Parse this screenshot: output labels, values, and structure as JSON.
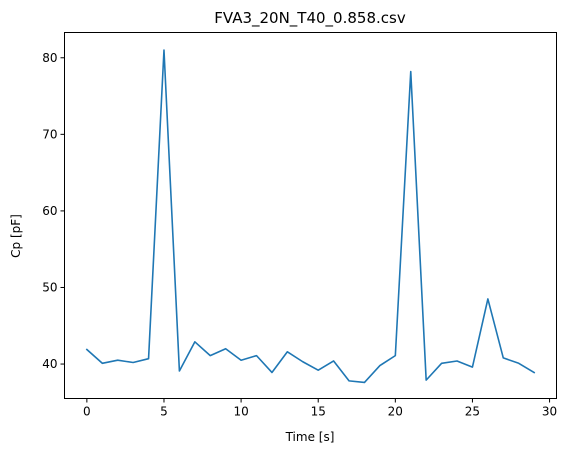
{
  "chart_data": {
    "type": "line",
    "title": "FVA3_20N_T40_0.858.csv",
    "xlabel": "Time [s]",
    "ylabel": "Cp [pF]",
    "xlim": [
      -1.45,
      30.45
    ],
    "ylim": [
      35.5,
      83.3
    ],
    "xticks": [
      0,
      5,
      10,
      15,
      20,
      25,
      30
    ],
    "yticks": [
      40,
      50,
      60,
      70,
      80
    ],
    "grid": false,
    "series": [
      {
        "color": "#1f77b4",
        "x": [
          0,
          1,
          2,
          3,
          4,
          5,
          6,
          7,
          8,
          9,
          10,
          11,
          12,
          13,
          14,
          15,
          16,
          17,
          18,
          19,
          20,
          21,
          22,
          23,
          24,
          25,
          26,
          27,
          28,
          29
        ],
        "y": [
          41.9,
          40.1,
          40.5,
          40.2,
          40.7,
          81.0,
          39.1,
          42.9,
          41.1,
          42.0,
          40.5,
          41.1,
          38.9,
          41.6,
          40.3,
          39.2,
          40.4,
          37.8,
          37.6,
          39.8,
          41.1,
          78.2,
          37.9,
          40.1,
          40.4,
          39.6,
          48.5,
          40.8,
          40.1,
          38.9
        ]
      }
    ]
  }
}
